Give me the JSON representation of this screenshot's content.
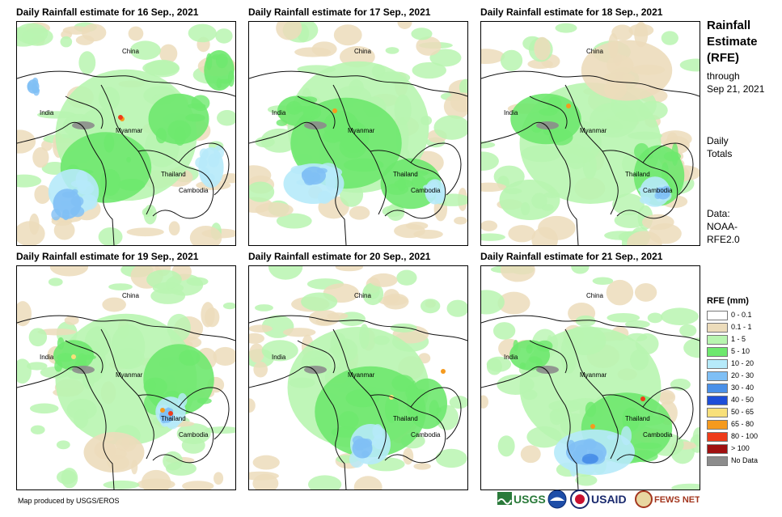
{
  "panels": [
    {
      "title": "Daily Rainfall estimate for 16 Sep., 2021"
    },
    {
      "title": "Daily Rainfall estimate for 17 Sep., 2021"
    },
    {
      "title": "Daily Rainfall estimate for 18 Sep., 2021"
    },
    {
      "title": "Daily Rainfall estimate for 19 Sep., 2021"
    },
    {
      "title": "Daily Rainfall estimate for 20 Sep., 2021"
    },
    {
      "title": "Daily Rainfall estimate for 21 Sep., 2021"
    }
  ],
  "map_labels": {
    "china": "China",
    "india": "India",
    "myanmar": "Myanmar",
    "thailand": "Thailand",
    "cambodia": "Cambodia"
  },
  "side": {
    "title_line1": "Rainfall",
    "title_line2": "Estimate",
    "title_line3": "(RFE)",
    "through": "through",
    "date": "Sep 21, 2021",
    "daily": "Daily",
    "totals": "Totals",
    "data_label": "Data:",
    "source1": "NOAA-",
    "source2": "RFE2.0"
  },
  "legend": {
    "title": "RFE (mm)",
    "items": [
      {
        "label": "0 - 0.1",
        "color": "#ffffff"
      },
      {
        "label": "0.1 - 1",
        "color": "#ecdcbb"
      },
      {
        "label": "1 - 5",
        "color": "#b8f5b0"
      },
      {
        "label": "5 - 10",
        "color": "#6ee86e"
      },
      {
        "label": "10 - 20",
        "color": "#b6eafa"
      },
      {
        "label": "20 - 30",
        "color": "#7fbff5"
      },
      {
        "label": "30 - 40",
        "color": "#4a90e8"
      },
      {
        "label": "40 - 50",
        "color": "#1e4ed8"
      },
      {
        "label": "50 - 65",
        "color": "#f8e07a"
      },
      {
        "label": "65 - 80",
        "color": "#f59a1e"
      },
      {
        "label": "80 - 100",
        "color": "#ee3b1a"
      },
      {
        "label": "> 100",
        "color": "#a01010"
      },
      {
        "label": "No Data",
        "color": "#8c8c8c"
      }
    ]
  },
  "credit": "Map produced by USGS/EROS",
  "logos": {
    "usgs": "USGS",
    "usaid": "USAID",
    "fewsnet": "FEWS NET"
  }
}
